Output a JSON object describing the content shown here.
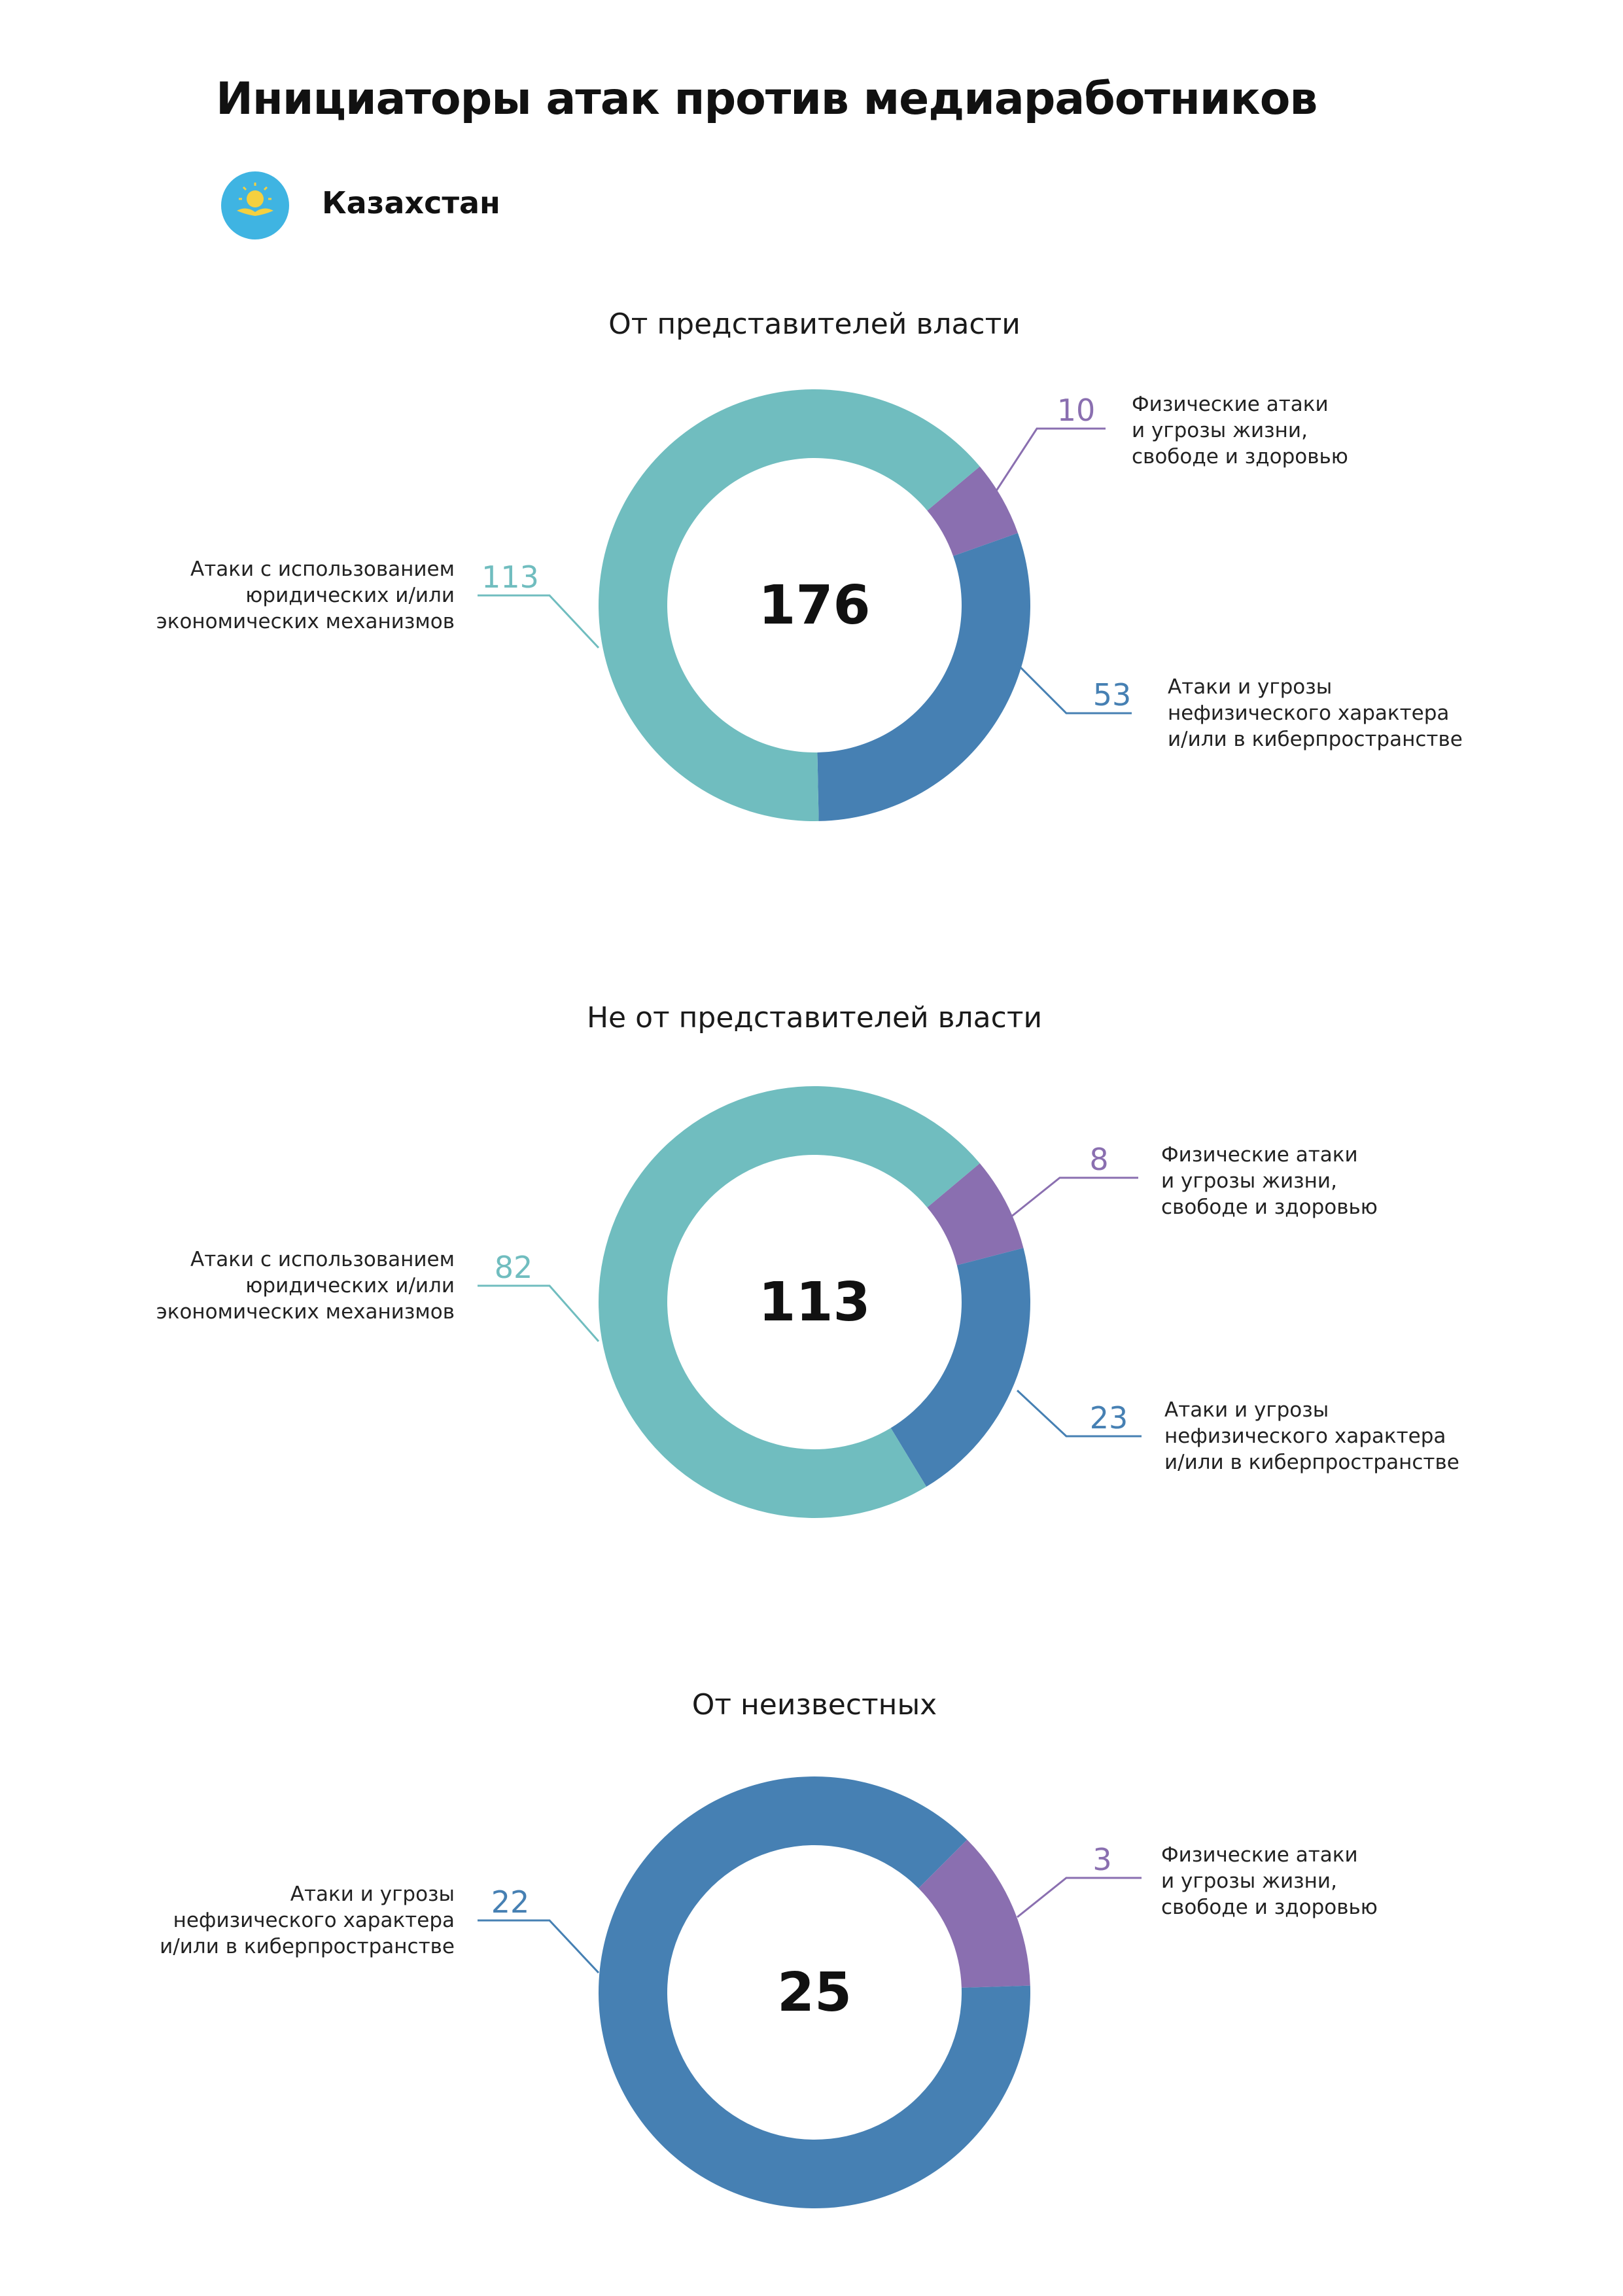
{
  "title": "Инициаторы атак против медиаработников",
  "country": {
    "name": "Казахстан",
    "flag_icon": "kazakhstan-flag-icon",
    "flag_color": "#3fb4e2",
    "emblem_color": "#f4d03f"
  },
  "colors": {
    "legal": "#70bdbf",
    "physical": "#8a6fb0",
    "cyber": "#4680b3"
  },
  "chart_data": [
    {
      "type": "donut",
      "title": "От представителей власти",
      "total": "176",
      "series": [
        {
          "name": "Физические атаки и угрозы жизни, свободе и здоровью",
          "label_lines": [
            "Физические атаки",
            "и угрозы жизни,",
            "свободе и здоровью"
          ],
          "value": 10,
          "color_key": "physical"
        },
        {
          "name": "Атаки и угрозы нефизического характера и/или в киберпространстве",
          "label_lines": [
            "Атаки и угрозы",
            "нефизического характера",
            "и/или в киберпространстве"
          ],
          "value": 53,
          "color_key": "cyber"
        },
        {
          "name": "Атаки с использованием юридических и/или экономических механизмов",
          "label_lines": [
            "Атаки с использованием",
            "юридических и/или",
            "экономических механизмов"
          ],
          "value": 113,
          "color_key": "legal"
        }
      ]
    },
    {
      "type": "donut",
      "title": "Не от представителей власти",
      "total": "113",
      "series": [
        {
          "name": "Физические атаки и угрозы жизни, свободе и здоровью",
          "label_lines": [
            "Физические атаки",
            "и угрозы жизни,",
            "свободе и здоровью"
          ],
          "value": 8,
          "color_key": "physical"
        },
        {
          "name": "Атаки и угрозы нефизического характера и/или в киберпространстве",
          "label_lines": [
            "Атаки и угрозы",
            "нефизического характера",
            "и/или в киберпространстве"
          ],
          "value": 23,
          "color_key": "cyber"
        },
        {
          "name": "Атаки с использованием юридических и/или экономических механизмов",
          "label_lines": [
            "Атаки с использованием",
            "юридических и/или",
            "экономических механизмов"
          ],
          "value": 82,
          "color_key": "legal"
        }
      ]
    },
    {
      "type": "donut",
      "title": "От неизвестных",
      "total": "25",
      "series": [
        {
          "name": "Физические атаки и угрозы жизни, свободе и здоровью",
          "label_lines": [
            "Физические атаки",
            "и угрозы жизни,",
            "свободе и здоровью"
          ],
          "value": 3,
          "color_key": "physical"
        },
        {
          "name": "Атаки и угрозы нефизического характера и/или в киберпространстве",
          "label_lines": [
            "Атаки и угрозы",
            "нефизического характера",
            "и/или в киберпространстве"
          ],
          "value": 22,
          "color_key": "cyber"
        }
      ]
    }
  ]
}
